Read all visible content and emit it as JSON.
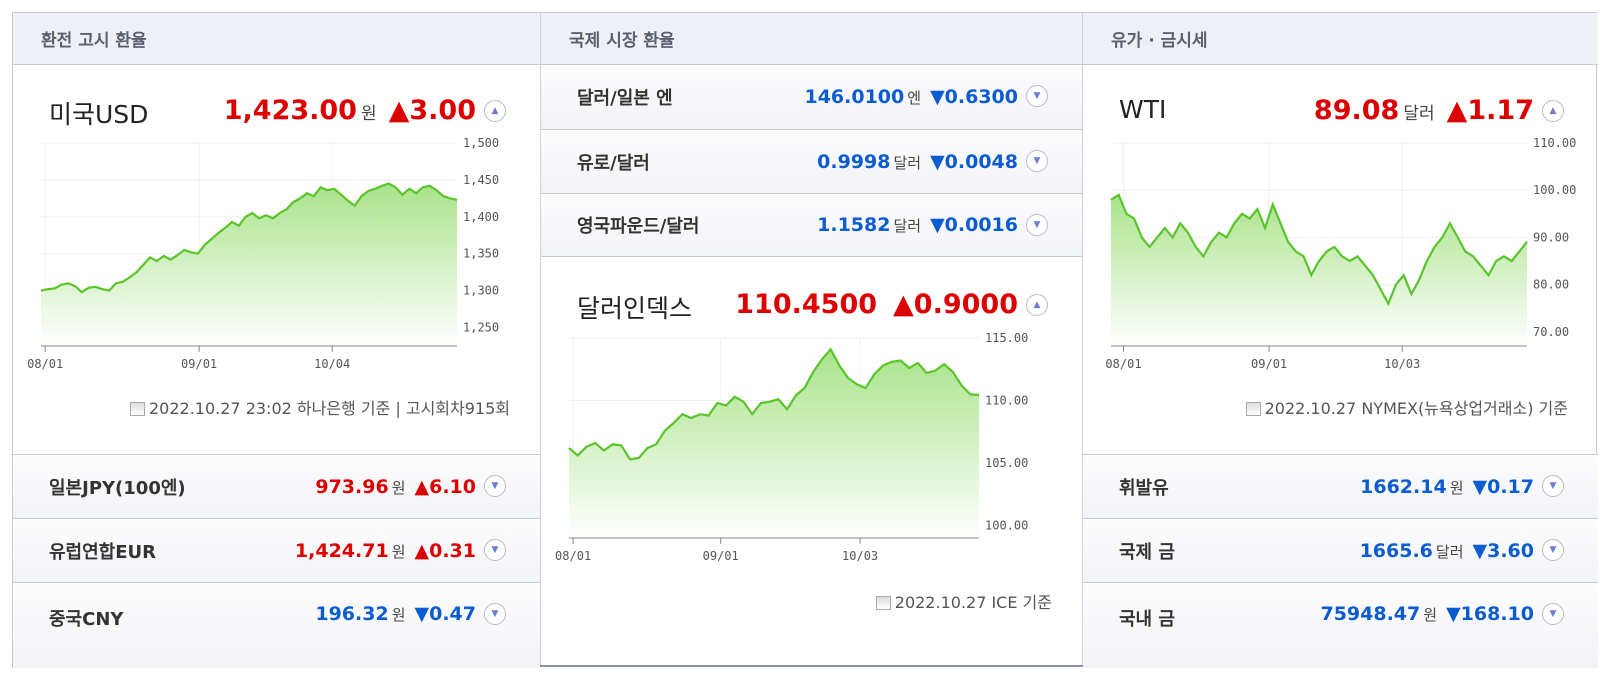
{
  "columns": {
    "exchange": {
      "title": "환전 고시 환율"
    },
    "intl": {
      "title": "국제 시장 환율"
    },
    "oil": {
      "title": "유가 · 금시세"
    }
  },
  "usd": {
    "name": "미국USD",
    "value": "1,423.00",
    "unit": "원",
    "change": "▲3.00",
    "source": "2022.10.27 23:02 하나은행 기준 | 고시회차915회",
    "chart_data": {
      "type": "area",
      "x_ticks": [
        "08/01",
        "09/01",
        "10/04"
      ],
      "y_ticks": [
        "1,500",
        "1,450",
        "1,400",
        "1,350",
        "1,300",
        "1,250"
      ],
      "ylim": [
        1225,
        1500
      ],
      "values": [
        1300,
        1302,
        1303,
        1308,
        1310,
        1306,
        1298,
        1304,
        1305,
        1302,
        1300,
        1310,
        1312,
        1318,
        1325,
        1335,
        1345,
        1340,
        1347,
        1342,
        1348,
        1355,
        1352,
        1350,
        1362,
        1370,
        1378,
        1385,
        1393,
        1388,
        1400,
        1405,
        1398,
        1402,
        1398,
        1405,
        1410,
        1420,
        1425,
        1432,
        1428,
        1440,
        1436,
        1438,
        1430,
        1422,
        1415,
        1428,
        1435,
        1438,
        1442,
        1445,
        1440,
        1430,
        1438,
        1432,
        1440,
        1442,
        1436,
        1428,
        1425,
        1423
      ]
    }
  },
  "left_rows": [
    {
      "name": "일본JPY(100엔)",
      "value": "973.96",
      "unit": "원",
      "change": "▲6.10",
      "dir": "up"
    },
    {
      "name": "유럽연합EUR",
      "value": "1,424.71",
      "unit": "원",
      "change": "▲0.31",
      "dir": "up"
    },
    {
      "name": "중국CNY",
      "value": "196.32",
      "unit": "원",
      "change": "▼0.47",
      "dir": "down"
    }
  ],
  "mid_rows": [
    {
      "name": "달러/일본 엔",
      "value": "146.0100",
      "unit": "엔",
      "change": "▼0.6300",
      "dir": "down"
    },
    {
      "name": "유로/달러",
      "value": "0.9998",
      "unit": "달러",
      "change": "▼0.0048",
      "dir": "down"
    },
    {
      "name": "영국파운드/달러",
      "value": "1.1582",
      "unit": "달러",
      "change": "▼0.0016",
      "dir": "down"
    }
  ],
  "dxy": {
    "name": "달러인덱스",
    "value": "110.4500",
    "change": "▲0.9000",
    "source": "2022.10.27 ICE 기준",
    "chart_data": {
      "type": "area",
      "x_ticks": [
        "08/01",
        "09/01",
        "10/03"
      ],
      "y_ticks": [
        "115.00",
        "110.00",
        "105.00",
        "100.00"
      ],
      "ylim": [
        99,
        115
      ],
      "values": [
        106.2,
        105.6,
        106.3,
        106.6,
        106.0,
        106.5,
        106.4,
        105.3,
        105.4,
        106.2,
        106.5,
        107.6,
        108.2,
        108.9,
        108.6,
        108.9,
        108.8,
        109.8,
        109.6,
        110.3,
        109.9,
        108.9,
        109.8,
        109.9,
        110.1,
        109.3,
        110.4,
        111.0,
        112.3,
        113.3,
        114.1,
        112.8,
        111.8,
        111.3,
        111.0,
        112.1,
        112.8,
        113.1,
        113.2,
        112.6,
        113.0,
        112.2,
        112.4,
        112.9,
        112.3,
        111.2,
        110.5,
        110.45
      ]
    }
  },
  "wti": {
    "name": "WTI",
    "value": "89.08",
    "unit": "달러",
    "change": "▲1.17",
    "source": "2022.10.27 NYMEX(뉴욕상업거래소) 기준",
    "chart_data": {
      "type": "area",
      "x_ticks": [
        "08/01",
        "09/01",
        "10/03"
      ],
      "y_ticks": [
        "110.00",
        "100.00",
        "90.00",
        "80.00",
        "70.00"
      ],
      "ylim": [
        67,
        110
      ],
      "values": [
        98,
        99,
        95,
        94,
        90,
        88,
        90,
        92,
        90,
        93,
        91,
        88,
        86,
        89,
        91,
        90,
        93,
        95,
        94,
        96,
        92,
        97,
        93,
        89,
        87,
        86,
        82,
        85,
        87,
        88,
        86,
        85,
        86,
        84,
        82,
        79,
        76,
        80,
        82,
        78,
        81,
        85,
        88,
        90,
        93,
        90,
        87,
        86,
        84,
        82,
        85,
        86,
        85,
        87,
        89.08
      ]
    }
  },
  "right_rows": [
    {
      "name": "휘발유",
      "value": "1662.14",
      "unit": "원",
      "change": "▼0.17",
      "dir": "down"
    },
    {
      "name": "국제 금",
      "value": "1665.6",
      "unit": "달러",
      "change": "▼3.60",
      "dir": "down"
    },
    {
      "name": "국내 금",
      "value": "75948.47",
      "unit": "원",
      "change": "▼168.10",
      "dir": "down"
    }
  ],
  "icons": {
    "collapse": "chevron-up-icon",
    "expand": "chevron-down-icon",
    "doc": "document-icon"
  },
  "colors": {
    "up": "#dd0000",
    "down": "#0b5bd1",
    "chart_line": "#5ac42b"
  }
}
